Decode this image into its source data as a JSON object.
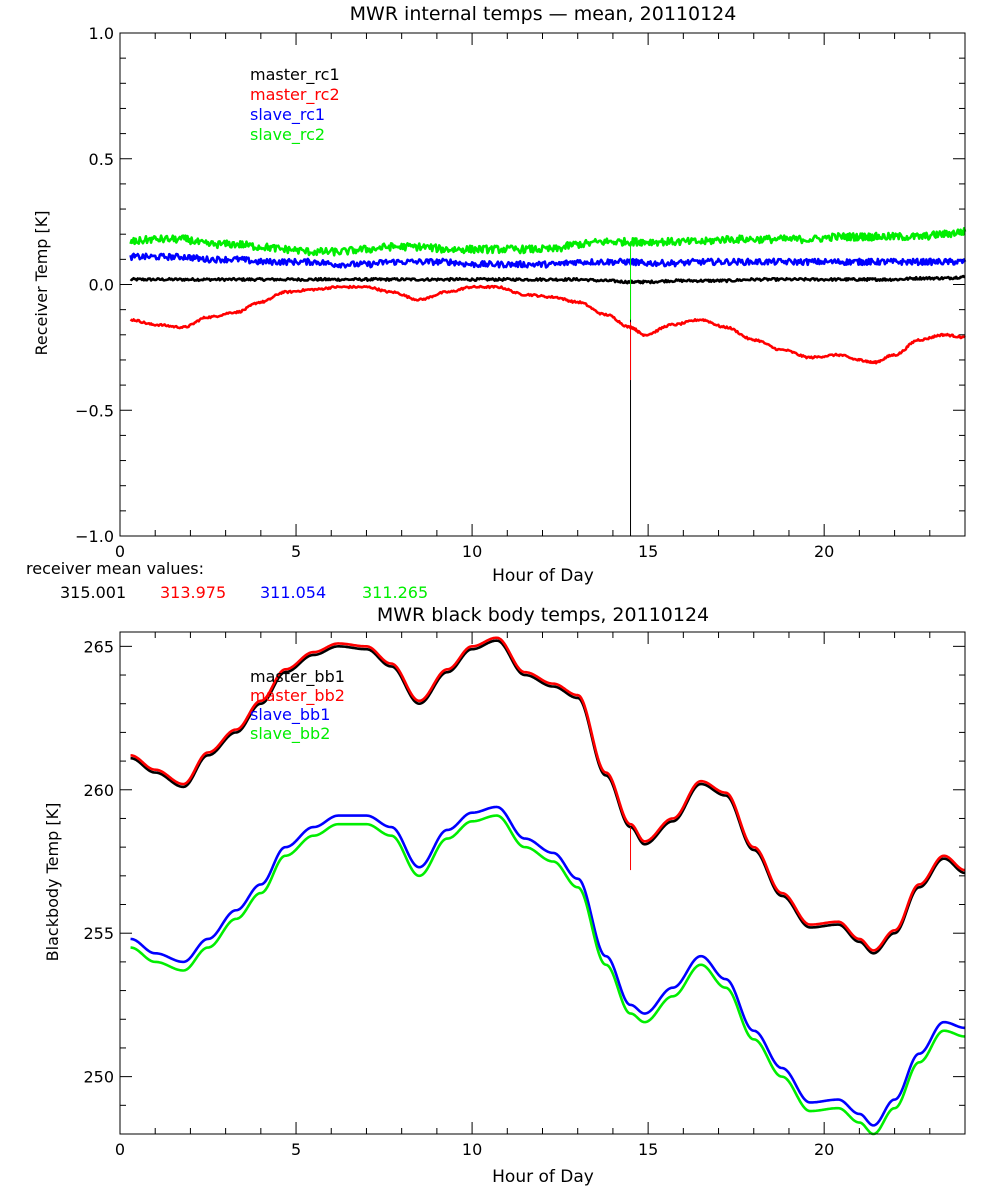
{
  "chart_data": [
    {
      "type": "line",
      "title": "MWR internal temps — mean, 20110124",
      "xlabel": "Hour of Day",
      "ylabel": "Receiver Temp [K]",
      "xlim": [
        0,
        24
      ],
      "ylim": [
        -1.0,
        1.0
      ],
      "xticks": [
        0,
        5,
        10,
        15,
        20
      ],
      "yticks": [
        -1.0,
        -0.5,
        0.0,
        0.5,
        1.0
      ],
      "ytick_labels": [
        "−1.0",
        "−0.5",
        "0.0",
        "0.5",
        "1.0"
      ],
      "grid": false,
      "legend": "top-left",
      "x": [
        0.3,
        1.0,
        1.8,
        2.5,
        3.3,
        4.0,
        4.7,
        5.5,
        6.2,
        7.0,
        7.7,
        8.5,
        9.3,
        10.0,
        10.7,
        11.5,
        12.3,
        13.0,
        13.8,
        14.5,
        14.9,
        15.7,
        16.5,
        17.2,
        18.0,
        18.8,
        19.6,
        20.4,
        21.0,
        21.4,
        22.0,
        22.7,
        23.4,
        24.0
      ],
      "series": [
        {
          "name": "master_rc1",
          "color": "#000000",
          "noise": 0.005,
          "values": [
            0.02,
            0.02,
            0.02,
            0.02,
            0.02,
            0.02,
            0.02,
            0.02,
            0.02,
            0.02,
            0.02,
            0.02,
            0.02,
            0.02,
            0.02,
            0.02,
            0.02,
            0.02,
            0.015,
            0.01,
            0.01,
            0.015,
            0.015,
            0.015,
            0.02,
            0.02,
            0.02,
            0.02,
            0.02,
            0.02,
            0.02,
            0.025,
            0.025,
            0.03
          ]
        },
        {
          "name": "master_rc2",
          "color": "#ff0000",
          "noise": 0.004,
          "values": [
            -0.14,
            -0.16,
            -0.17,
            -0.13,
            -0.11,
            -0.07,
            -0.03,
            -0.02,
            -0.01,
            -0.01,
            -0.03,
            -0.06,
            -0.03,
            -0.01,
            -0.01,
            -0.04,
            -0.05,
            -0.07,
            -0.12,
            -0.17,
            -0.2,
            -0.16,
            -0.14,
            -0.17,
            -0.22,
            -0.26,
            -0.29,
            -0.28,
            -0.3,
            -0.31,
            -0.28,
            -0.22,
            -0.2,
            -0.21
          ]
        },
        {
          "name": "slave_rc1",
          "color": "#0000ff",
          "noise": 0.012,
          "values": [
            0.11,
            0.11,
            0.11,
            0.1,
            0.1,
            0.09,
            0.09,
            0.09,
            0.08,
            0.08,
            0.09,
            0.09,
            0.09,
            0.08,
            0.08,
            0.08,
            0.08,
            0.09,
            0.09,
            0.09,
            0.085,
            0.085,
            0.09,
            0.09,
            0.09,
            0.09,
            0.09,
            0.09,
            0.09,
            0.09,
            0.09,
            0.09,
            0.09,
            0.09
          ]
        },
        {
          "name": "slave_rc2",
          "color": "#00ee00",
          "noise": 0.015,
          "values": [
            0.17,
            0.18,
            0.18,
            0.16,
            0.16,
            0.15,
            0.14,
            0.13,
            0.13,
            0.14,
            0.15,
            0.15,
            0.14,
            0.14,
            0.14,
            0.14,
            0.14,
            0.16,
            0.17,
            0.17,
            0.17,
            0.17,
            0.17,
            0.18,
            0.18,
            0.18,
            0.18,
            0.19,
            0.19,
            0.19,
            0.19,
            0.19,
            0.2,
            0.21
          ]
        }
      ],
      "spikes": [
        {
          "series": "master_rc1",
          "x": 14.5,
          "from": 0.01,
          "to": -1.0
        },
        {
          "series": "master_rc2",
          "x": 14.5,
          "from": -0.15,
          "to": -0.38
        },
        {
          "series": "slave_rc2",
          "x": 14.5,
          "from": 0.17,
          "to": -0.14
        }
      ],
      "mean_values_label": "receiver mean values:",
      "mean_values": [
        "315.001",
        "313.975",
        "311.054",
        "311.265"
      ]
    },
    {
      "type": "line",
      "title": "MWR black body temps, 20110124",
      "xlabel": "Hour of Day",
      "ylabel": "Blackbody Temp [K]",
      "xlim": [
        0,
        24
      ],
      "ylim": [
        248,
        265.5
      ],
      "xticks": [
        0,
        5,
        10,
        15,
        20
      ],
      "yticks": [
        250,
        255,
        260,
        265
      ],
      "ytick_labels": [
        "250",
        "255",
        "260",
        "265"
      ],
      "grid": false,
      "legend": "top-left",
      "x": [
        0.3,
        1.0,
        1.8,
        2.5,
        3.3,
        4.0,
        4.7,
        5.5,
        6.2,
        7.0,
        7.7,
        8.5,
        9.3,
        10.0,
        10.7,
        11.5,
        12.3,
        13.0,
        13.8,
        14.5,
        14.9,
        15.7,
        16.5,
        17.2,
        18.0,
        18.8,
        19.6,
        20.4,
        21.0,
        21.4,
        22.0,
        22.7,
        23.4,
        24.0
      ],
      "series": [
        {
          "name": "master_bb1",
          "color": "#000000",
          "noise": 0,
          "values": [
            261.1,
            260.6,
            260.1,
            261.2,
            262.0,
            263.0,
            264.1,
            264.7,
            265.0,
            264.9,
            264.3,
            263.0,
            264.1,
            264.9,
            265.2,
            264.0,
            263.6,
            263.2,
            260.5,
            258.7,
            258.1,
            258.9,
            260.2,
            259.8,
            257.9,
            256.3,
            255.2,
            255.3,
            254.7,
            254.3,
            255.0,
            256.6,
            257.6,
            257.1
          ]
        },
        {
          "name": "master_bb2",
          "color": "#ff0000",
          "noise": 0,
          "values": [
            261.2,
            260.7,
            260.2,
            261.3,
            262.1,
            263.1,
            264.2,
            264.8,
            265.1,
            265.0,
            264.4,
            263.1,
            264.2,
            265.0,
            265.3,
            264.1,
            263.7,
            263.3,
            260.6,
            258.8,
            258.2,
            259.0,
            260.3,
            259.9,
            258.0,
            256.4,
            255.3,
            255.4,
            254.8,
            254.4,
            255.1,
            256.7,
            257.7,
            257.2
          ]
        },
        {
          "name": "slave_bb1",
          "color": "#0000ff",
          "noise": 0,
          "values": [
            254.8,
            254.3,
            254.0,
            254.8,
            255.8,
            256.7,
            258.0,
            258.7,
            259.1,
            259.1,
            258.7,
            257.3,
            258.6,
            259.2,
            259.4,
            258.3,
            257.8,
            256.9,
            254.2,
            252.5,
            252.2,
            253.1,
            254.2,
            253.4,
            251.6,
            250.3,
            249.1,
            249.2,
            248.7,
            248.3,
            249.2,
            250.8,
            251.9,
            251.7
          ]
        },
        {
          "name": "slave_bb2",
          "color": "#00ee00",
          "noise": 0,
          "values": [
            254.5,
            254.0,
            253.7,
            254.5,
            255.5,
            256.4,
            257.7,
            258.4,
            258.8,
            258.8,
            258.4,
            257.0,
            258.3,
            258.9,
            259.1,
            258.0,
            257.5,
            256.6,
            253.9,
            252.2,
            251.9,
            252.8,
            253.9,
            253.1,
            251.3,
            250.0,
            248.8,
            248.9,
            248.4,
            248.0,
            248.9,
            250.5,
            251.6,
            251.4
          ]
        }
      ],
      "spikes": [
        {
          "series": "master_bb2",
          "x": 14.5,
          "from": 258.7,
          "to": 257.2
        }
      ]
    }
  ]
}
